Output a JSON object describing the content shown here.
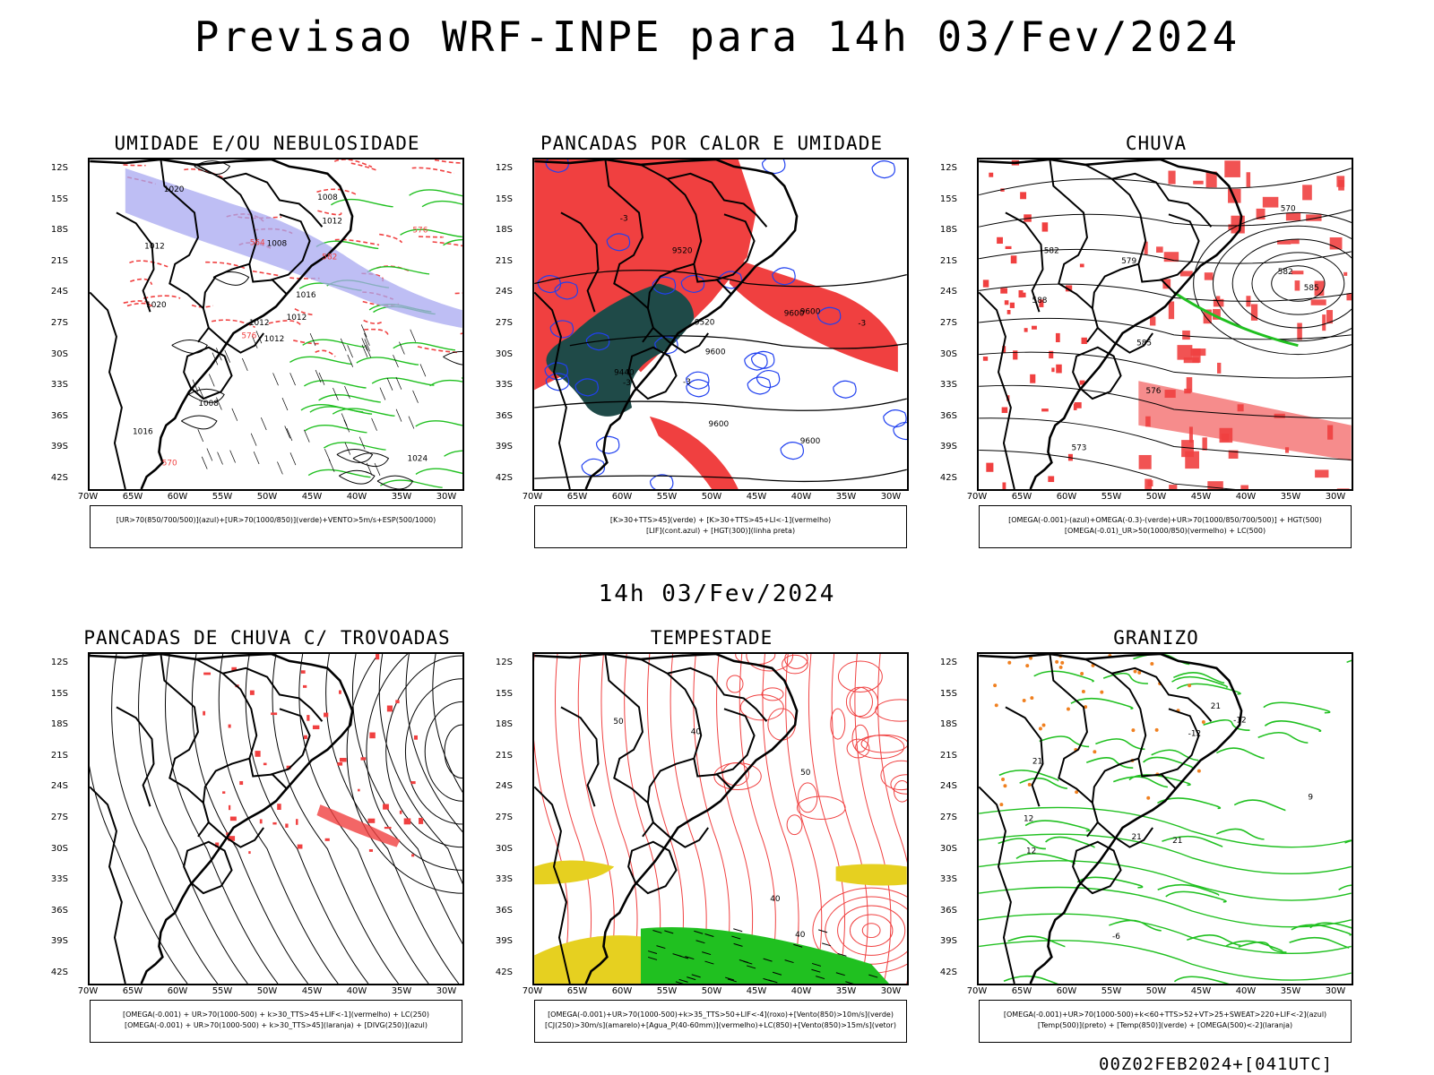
{
  "header": {
    "title": "Previsao WRF-INPE  para 14h 03/Fev/2024",
    "mid_title": "14h 03/Fev/2024",
    "stamp": "00Z02FEB2024+[041UTC]"
  },
  "axes": {
    "lat_labels": [
      "12S",
      "15S",
      "18S",
      "21S",
      "24S",
      "27S",
      "30S",
      "33S",
      "36S",
      "39S",
      "42S"
    ],
    "lon_labels": [
      "70W",
      "65W",
      "60W",
      "55W",
      "50W",
      "45W",
      "40W",
      "35W",
      "30W"
    ]
  },
  "panels": [
    {
      "title": "UMIDADE E/OU NEBULOSIDADE",
      "legend": [
        "[UR>70(850/700/500)](azul)+[UR>70(1000/850)](verde)+VENTO>5m/s+ESP(500/1000)"
      ],
      "labels": [
        "1012",
        "1012",
        "1012",
        "1016",
        "1016",
        "1008",
        "1008",
        "1008",
        "1012",
        "1012",
        "1020",
        "1024",
        "1020",
        "576",
        "576",
        "582",
        "570",
        "564"
      ]
    },
    {
      "title": "PANCADAS POR CALOR E UMIDADE",
      "legend": [
        "[K>30+TTS>45](verde) + [K>30+TTS>45+LI<-1](vermelho)",
        "[LIF](cont.azul) + [HGT(300)](linha preta)"
      ],
      "labels": [
        "9600",
        "9600",
        "9600",
        "9600",
        "9600",
        "9520",
        "9520",
        "9440",
        "-3",
        "-3",
        "-3",
        "-3"
      ]
    },
    {
      "title": "CHUVA",
      "legend": [
        "[OMEGA(-0.001)-(azul)+OMEGA(-0.3)-(verde)+UR>70(1000/850/700/500)] + HGT(500)",
        "[OMEGA(-0.01)_UR>50(1000/850)(vermelho) + LC(500)"
      ],
      "labels": [
        "585",
        "585",
        "588",
        "582",
        "579",
        "576",
        "573",
        "570",
        "582"
      ]
    },
    {
      "title": "PANCADAS DE CHUVA C/ TROVOADAS",
      "legend": [
        "[OMEGA(-0.001) + UR>70(1000-500) + k>30_TTS>45+LIF<-1](vermelho) + LC(250)",
        "[OMEGA(-0.001) + UR>70(1000-500) + k>30_TTS>45](laranja) + [DIVG(250)](azul)"
      ],
      "labels": []
    },
    {
      "title": "TEMPESTADE",
      "legend": [
        "[OMEGA(-0.001)+UR>70(1000-500)+k>35_TTS>50+LIF<-4](roxo)+[Vento(850)>10m/s](verde)",
        "[CJ(250)>30m/s](amarelo)+[Agua_P(40-60mm)](vermelho)+LC(850)+[Vento(850)>15m/s](vetor)"
      ],
      "labels": [
        "40",
        "40",
        "50",
        "40",
        "50"
      ]
    },
    {
      "title": "GRANIZO",
      "legend": [
        "[OMEGA(-0.001)+UR>70(1000-500)+k<60+TTS>52+VT>25+SWEAT>220+LIF<-2](azul)",
        "[Temp(500)](preto) + [Temp(850)](verde) + [OMEGA(500)<-2](laranja)"
      ],
      "labels": [
        "21",
        "21",
        "21",
        "12",
        "12",
        "-12",
        "-12",
        "9",
        "-6",
        "21"
      ]
    }
  ],
  "colors": {
    "red": "#f04040",
    "green": "#20c020",
    "blue": "#2040f0",
    "lavender": "#a8a8f0",
    "darkteal": "#1f4a48",
    "yellow": "#e6d020",
    "orange": "#f08020",
    "black": "#000000"
  }
}
